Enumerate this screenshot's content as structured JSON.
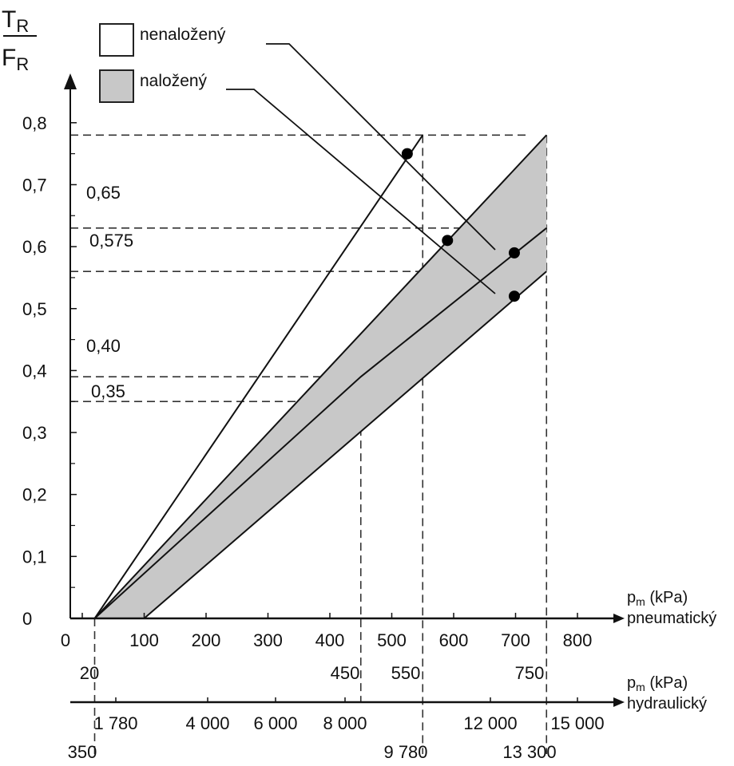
{
  "y_axis_label": {
    "numerator": "T",
    "numerator_sub": "R",
    "denominator": "F",
    "denominator_sub": "R"
  },
  "legend": [
    {
      "label": "nenaložený",
      "fill": "#ffffff"
    },
    {
      "label": "naložený",
      "fill": "#c8c8c8"
    }
  ],
  "x_axis_pneumatic": {
    "label": "p",
    "sub": "m",
    "unit": " (kPa)",
    "name": "pneumatický"
  },
  "x_axis_hydraulic": {
    "label": "p",
    "sub": "m",
    "unit": " (kPa)",
    "name": "hydraulický"
  },
  "colors": {
    "band": "#c8c8c8",
    "line": "#111111",
    "dash": "#333333"
  },
  "chart_data": {
    "type": "line",
    "ylim": [
      0,
      0.8
    ],
    "xlim": [
      0,
      860
    ],
    "y_ticks": [
      "0",
      "0,1",
      "0,2",
      "0,3",
      "0,4",
      "0,5",
      "0,6",
      "0,7",
      "0,8"
    ],
    "x_ticks_pneumatic": [
      "0",
      "100",
      "200",
      "300",
      "400",
      "500",
      "600",
      "700",
      "800"
    ],
    "x_marks_pneumatic": [
      "20",
      "450",
      "550",
      "750"
    ],
    "x_ticks_hydraulic": [
      "1 780",
      "4 000",
      "6 000",
      "8 000",
      "12 000",
      "15 000"
    ],
    "x_marks_hydraulic": [
      "350",
      "9 780",
      "13 300"
    ],
    "annotations": [
      "0,65",
      "0,575",
      "0,40",
      "0,35"
    ],
    "series": [
      {
        "points": [
          [
            20,
            0
          ],
          [
            550,
            0.78
          ]
        ]
      },
      {
        "points": [
          [
            20,
            0
          ],
          [
            750,
            0.78
          ]
        ]
      },
      {
        "points": [
          [
            20,
            0
          ],
          [
            450,
            0.39
          ],
          [
            750,
            0.63
          ]
        ]
      },
      {
        "points": [
          [
            100,
            0
          ],
          [
            750,
            0.56
          ]
        ]
      }
    ],
    "markers": [
      [
        525,
        0.75
      ],
      [
        590,
        0.61
      ],
      [
        698,
        0.59
      ],
      [
        698,
        0.52
      ]
    ]
  }
}
